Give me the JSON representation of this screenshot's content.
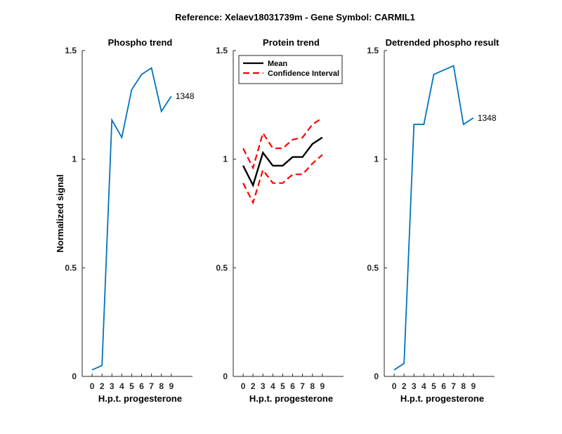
{
  "figure_title": "Reference:  Xelaev18031739m - Gene Symbol:  CARMIL1",
  "chart_data": [
    {
      "type": "line",
      "title": "Phospho trend",
      "xlabel": "H.p.t. progesterone",
      "ylabel": "Normalized signal",
      "xlim": [
        -1,
        10
      ],
      "ylim": [
        0,
        1.5
      ],
      "xticks": [
        0,
        2,
        3,
        4,
        5,
        6,
        7,
        8,
        9
      ],
      "xtick_labels": [
        "0",
        "2",
        "3",
        "4",
        "5",
        "6",
        "7",
        "8",
        "9"
      ],
      "yticks": [
        0,
        0.5,
        1,
        1.5
      ],
      "ytick_labels": [
        "0",
        "0.5",
        "1",
        "1.5"
      ],
      "x": [
        0,
        1,
        2,
        3,
        4,
        5,
        6,
        7,
        8
      ],
      "series": [
        {
          "values": [
            0.03,
            0.05,
            1.18,
            1.1,
            1.32,
            1.39,
            1.42,
            1.22,
            1.29
          ],
          "color": "#0072BD",
          "style": "solid",
          "end_label": "1348"
        }
      ],
      "grid": false,
      "legend": null
    },
    {
      "type": "line",
      "title": "Protein trend",
      "xlabel": "H.p.t. progesterone",
      "ylabel": "",
      "xlim": [
        -1,
        10
      ],
      "ylim": [
        0,
        1.5
      ],
      "xticks": [
        0,
        2,
        3,
        4,
        5,
        6,
        7,
        8,
        9
      ],
      "xtick_labels": [
        "0",
        "2",
        "3",
        "4",
        "5",
        "6",
        "7",
        "8",
        "9"
      ],
      "yticks": [
        0,
        0.5,
        1,
        1.5
      ],
      "ytick_labels": [
        "0",
        "0.5",
        "1",
        "1.5"
      ],
      "x": [
        0,
        1,
        2,
        3,
        4,
        5,
        6,
        7,
        8
      ],
      "series": [
        {
          "name": "Mean",
          "values": [
            0.97,
            0.88,
            1.03,
            0.97,
            0.97,
            1.01,
            1.01,
            1.07,
            1.1
          ],
          "color": "#000000",
          "style": "solid"
        },
        {
          "name": "Confidence Interval",
          "values": [
            1.05,
            0.96,
            1.12,
            1.05,
            1.05,
            1.09,
            1.1,
            1.16,
            1.19
          ],
          "color": "#ff0000",
          "style": "dashed"
        },
        {
          "values": [
            0.89,
            0.8,
            0.95,
            0.89,
            0.89,
            0.93,
            0.93,
            0.98,
            1.02
          ],
          "color": "#ff0000",
          "style": "dashed"
        }
      ],
      "grid": false,
      "legend": "top-left"
    },
    {
      "type": "line",
      "title": "Detrended phospho result",
      "xlabel": "H.p.t. progesterone",
      "ylabel": "",
      "xlim": [
        -1,
        10
      ],
      "ylim": [
        0,
        1.5
      ],
      "xticks": [
        0,
        2,
        3,
        4,
        5,
        6,
        7,
        8,
        9
      ],
      "xtick_labels": [
        "0",
        "2",
        "3",
        "4",
        "5",
        "6",
        "7",
        "8",
        "9"
      ],
      "yticks": [
        0,
        0.5,
        1,
        1.5
      ],
      "ytick_labels": [
        "0",
        "0.5",
        "1",
        "1.5"
      ],
      "x": [
        0,
        1,
        2,
        3,
        4,
        5,
        6,
        7,
        8
      ],
      "series": [
        {
          "values": [
            0.03,
            0.06,
            1.16,
            1.16,
            1.39,
            1.41,
            1.43,
            1.16,
            1.19
          ],
          "color": "#0072BD",
          "style": "solid",
          "end_label": "1348"
        }
      ],
      "grid": false,
      "legend": null
    }
  ]
}
